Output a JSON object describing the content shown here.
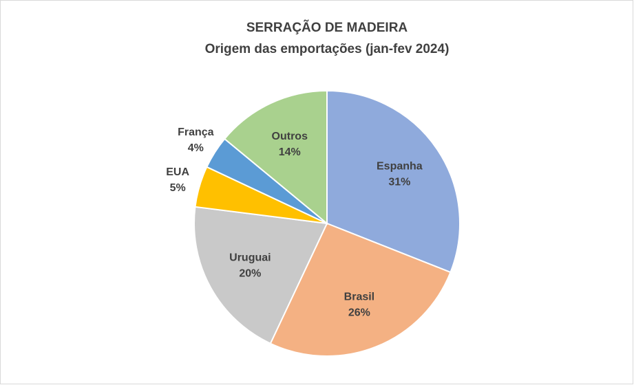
{
  "chart_data": {
    "type": "pie",
    "title": "SERRAÇÃO DE MADEIRA",
    "subtitle": "Origem das emportações (jan-fev 2024)",
    "categories": [
      "Espanha",
      "Brasil",
      "Uruguai",
      "EUA",
      "França",
      "Outros"
    ],
    "values": [
      31,
      26,
      20,
      5,
      4,
      14
    ],
    "value_labels": [
      "31%",
      "26%",
      "20%",
      "5%",
      "4%",
      "14%"
    ],
    "colors": [
      "#8faadc",
      "#f4b183",
      "#c9c9c9",
      "#ffc000",
      "#5b9bd5",
      "#a9d18e"
    ]
  }
}
